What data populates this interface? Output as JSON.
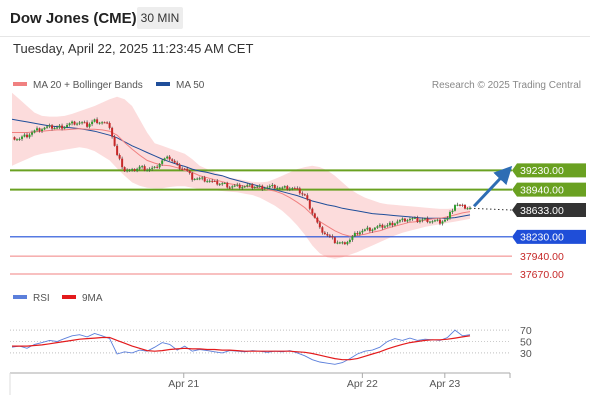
{
  "header": {
    "title": "Dow Jones (CME)",
    "timeframe": "30 MIN"
  },
  "datetime": "Tuesday, April 22, 2025 11:23:45 AM CET",
  "legend": {
    "ma20_bb": "MA 20 + Bollinger Bands",
    "ma50": "MA 50",
    "ma20_color": "#f08080",
    "ma50_color": "#1f4e9a"
  },
  "credit": "Research © 2025 Trading Central",
  "rsi_legend": {
    "rsi": "RSI",
    "ma": "9MA",
    "rsi_color": "#5b7fdb",
    "ma_color": "#e31a1c"
  },
  "colors": {
    "up_candle": "#2e9e2e",
    "down_candle": "#c62828",
    "resistance": "#6aa121",
    "support": "#1f4ed8",
    "target_support": "#f08080",
    "last_price": "#333333",
    "bollinger": "#fbd0d0",
    "arrow": "#2e6db4"
  },
  "chart_data": [
    {
      "type": "candlestick",
      "title": "Dow Jones (CME)",
      "ylim": [
        37550,
        40350
      ],
      "x_ticks": [
        "Apr 21",
        "Apr 22",
        "Apr 23"
      ],
      "price_levels": [
        {
          "label": "39230.00",
          "value": 39230,
          "kind": "resistance"
        },
        {
          "label": "38940.00",
          "value": 38940,
          "kind": "resistance"
        },
        {
          "label": "38633.00",
          "value": 38633,
          "kind": "last"
        },
        {
          "label": "38230.00",
          "value": 38230,
          "kind": "support"
        },
        {
          "label": "37940.00",
          "value": 37940,
          "kind": "target"
        },
        {
          "label": "37670.00",
          "value": 37670,
          "kind": "target"
        }
      ],
      "close_path": [
        39730,
        39710,
        39760,
        39820,
        39860,
        39880,
        39870,
        39900,
        39940,
        39950,
        39910,
        39980,
        39960,
        39900,
        39450,
        39230,
        39220,
        39280,
        39250,
        39260,
        39380,
        39420,
        39300,
        39260,
        39120,
        39100,
        39080,
        39040,
        39030,
        38990,
        38990,
        38990,
        38990,
        38980,
        38980,
        38990,
        38960,
        38970,
        38930,
        38850,
        38600,
        38350,
        38250,
        38160,
        38130,
        38190,
        38300,
        38330,
        38350,
        38380,
        38400,
        38450,
        38480,
        38500,
        38480,
        38490,
        38470,
        38460,
        38500,
        38720,
        38680,
        38660
      ],
      "ma20": [
        39800,
        39800,
        39800,
        39810,
        39820,
        39830,
        39840,
        39840,
        39850,
        39860,
        39850,
        39850,
        39840,
        39820,
        39760,
        39650,
        39550,
        39460,
        39380,
        39340,
        39310,
        39300,
        39270,
        39230,
        39200,
        39150,
        39120,
        39090,
        39060,
        39030,
        39010,
        38990,
        38980,
        38960,
        38940,
        38920,
        38880,
        38820,
        38750,
        38670,
        38560,
        38460,
        38390,
        38320,
        38270,
        38240,
        38250,
        38270,
        38300,
        38320,
        38360,
        38390,
        38420,
        38450,
        38460,
        38480,
        38500,
        38510,
        38530,
        38560,
        38590,
        38610
      ],
      "ma50": [
        40000,
        39980,
        39960,
        39940,
        39920,
        39900,
        39890,
        39880,
        39870,
        39860,
        39840,
        39820,
        39790,
        39760,
        39720,
        39660,
        39600,
        39550,
        39500,
        39450,
        39400,
        39360,
        39320,
        39290,
        39250,
        39220,
        39200,
        39170,
        39150,
        39110,
        39080,
        39050,
        39020,
        38990,
        38960,
        38940,
        38910,
        38880,
        38850,
        38810,
        38770,
        38740,
        38710,
        38690,
        38660,
        38640,
        38620,
        38600,
        38580,
        38570,
        38560,
        38550,
        38540,
        38530,
        38520,
        38510,
        38510,
        38510,
        38510,
        38520,
        38540,
        38560
      ],
      "bb_upper": [
        40400,
        40300,
        40200,
        40100,
        40050,
        40040,
        40040,
        40050,
        40080,
        40120,
        40160,
        40200,
        40250,
        40300,
        40340,
        40300,
        40200,
        40000,
        39800,
        39640,
        39600,
        39560,
        39520,
        39480,
        39400,
        39300,
        39250,
        39200,
        39160,
        39120,
        39100,
        39080,
        39060,
        39050,
        39060,
        39100,
        39150,
        39200,
        39250,
        39280,
        39300,
        39280,
        39230,
        39150,
        39050,
        38950,
        38880,
        38820,
        38780,
        38740,
        38720,
        38710,
        38700,
        38690,
        38680,
        38670,
        38660,
        38650,
        38650,
        38660,
        38680,
        38700
      ],
      "bb_lower": [
        39300,
        39350,
        39400,
        39450,
        39480,
        39500,
        39520,
        39540,
        39560,
        39580,
        39560,
        39520,
        39450,
        39380,
        39260,
        39150,
        39050,
        39000,
        38970,
        38960,
        38960,
        38980,
        38990,
        38990,
        38970,
        38950,
        38940,
        38930,
        38920,
        38910,
        38900,
        38880,
        38860,
        38820,
        38760,
        38700,
        38620,
        38520,
        38400,
        38260,
        38100,
        37980,
        37920,
        37900,
        37920,
        37960,
        38000,
        38050,
        38100,
        38150,
        38200,
        38250,
        38290,
        38320,
        38350,
        38380,
        38400,
        38420,
        38440,
        38460,
        38480,
        38500
      ]
    },
    {
      "type": "line",
      "title": "RSI",
      "ylim": [
        0,
        100
      ],
      "y_ticks": [
        "70",
        "50",
        "30"
      ],
      "series": [
        {
          "name": "RSI",
          "values": [
            40,
            42,
            38,
            45,
            48,
            52,
            50,
            55,
            60,
            62,
            58,
            64,
            60,
            55,
            28,
            32,
            30,
            35,
            33,
            40,
            48,
            45,
            35,
            42,
            33,
            36,
            34,
            32,
            30,
            34,
            33,
            32,
            34,
            33,
            31,
            33,
            32,
            34,
            30,
            25,
            18,
            14,
            12,
            10,
            13,
            20,
            28,
            33,
            35,
            40,
            50,
            55,
            52,
            56,
            52,
            54,
            53,
            52,
            57,
            70,
            60,
            62
          ]
        },
        {
          "name": "9MA",
          "values": [
            42,
            42,
            42,
            43,
            44,
            46,
            48,
            50,
            52,
            54,
            55,
            56,
            57,
            57,
            52,
            47,
            42,
            38,
            34,
            33,
            34,
            36,
            37,
            38,
            37,
            37,
            36,
            36,
            35,
            35,
            34,
            33,
            33,
            33,
            33,
            33,
            33,
            33,
            32,
            31,
            29,
            26,
            23,
            20,
            18,
            18,
            20,
            24,
            28,
            32,
            37,
            41,
            45,
            48,
            50,
            52,
            53,
            53,
            54,
            56,
            58,
            60
          ]
        }
      ]
    }
  ]
}
